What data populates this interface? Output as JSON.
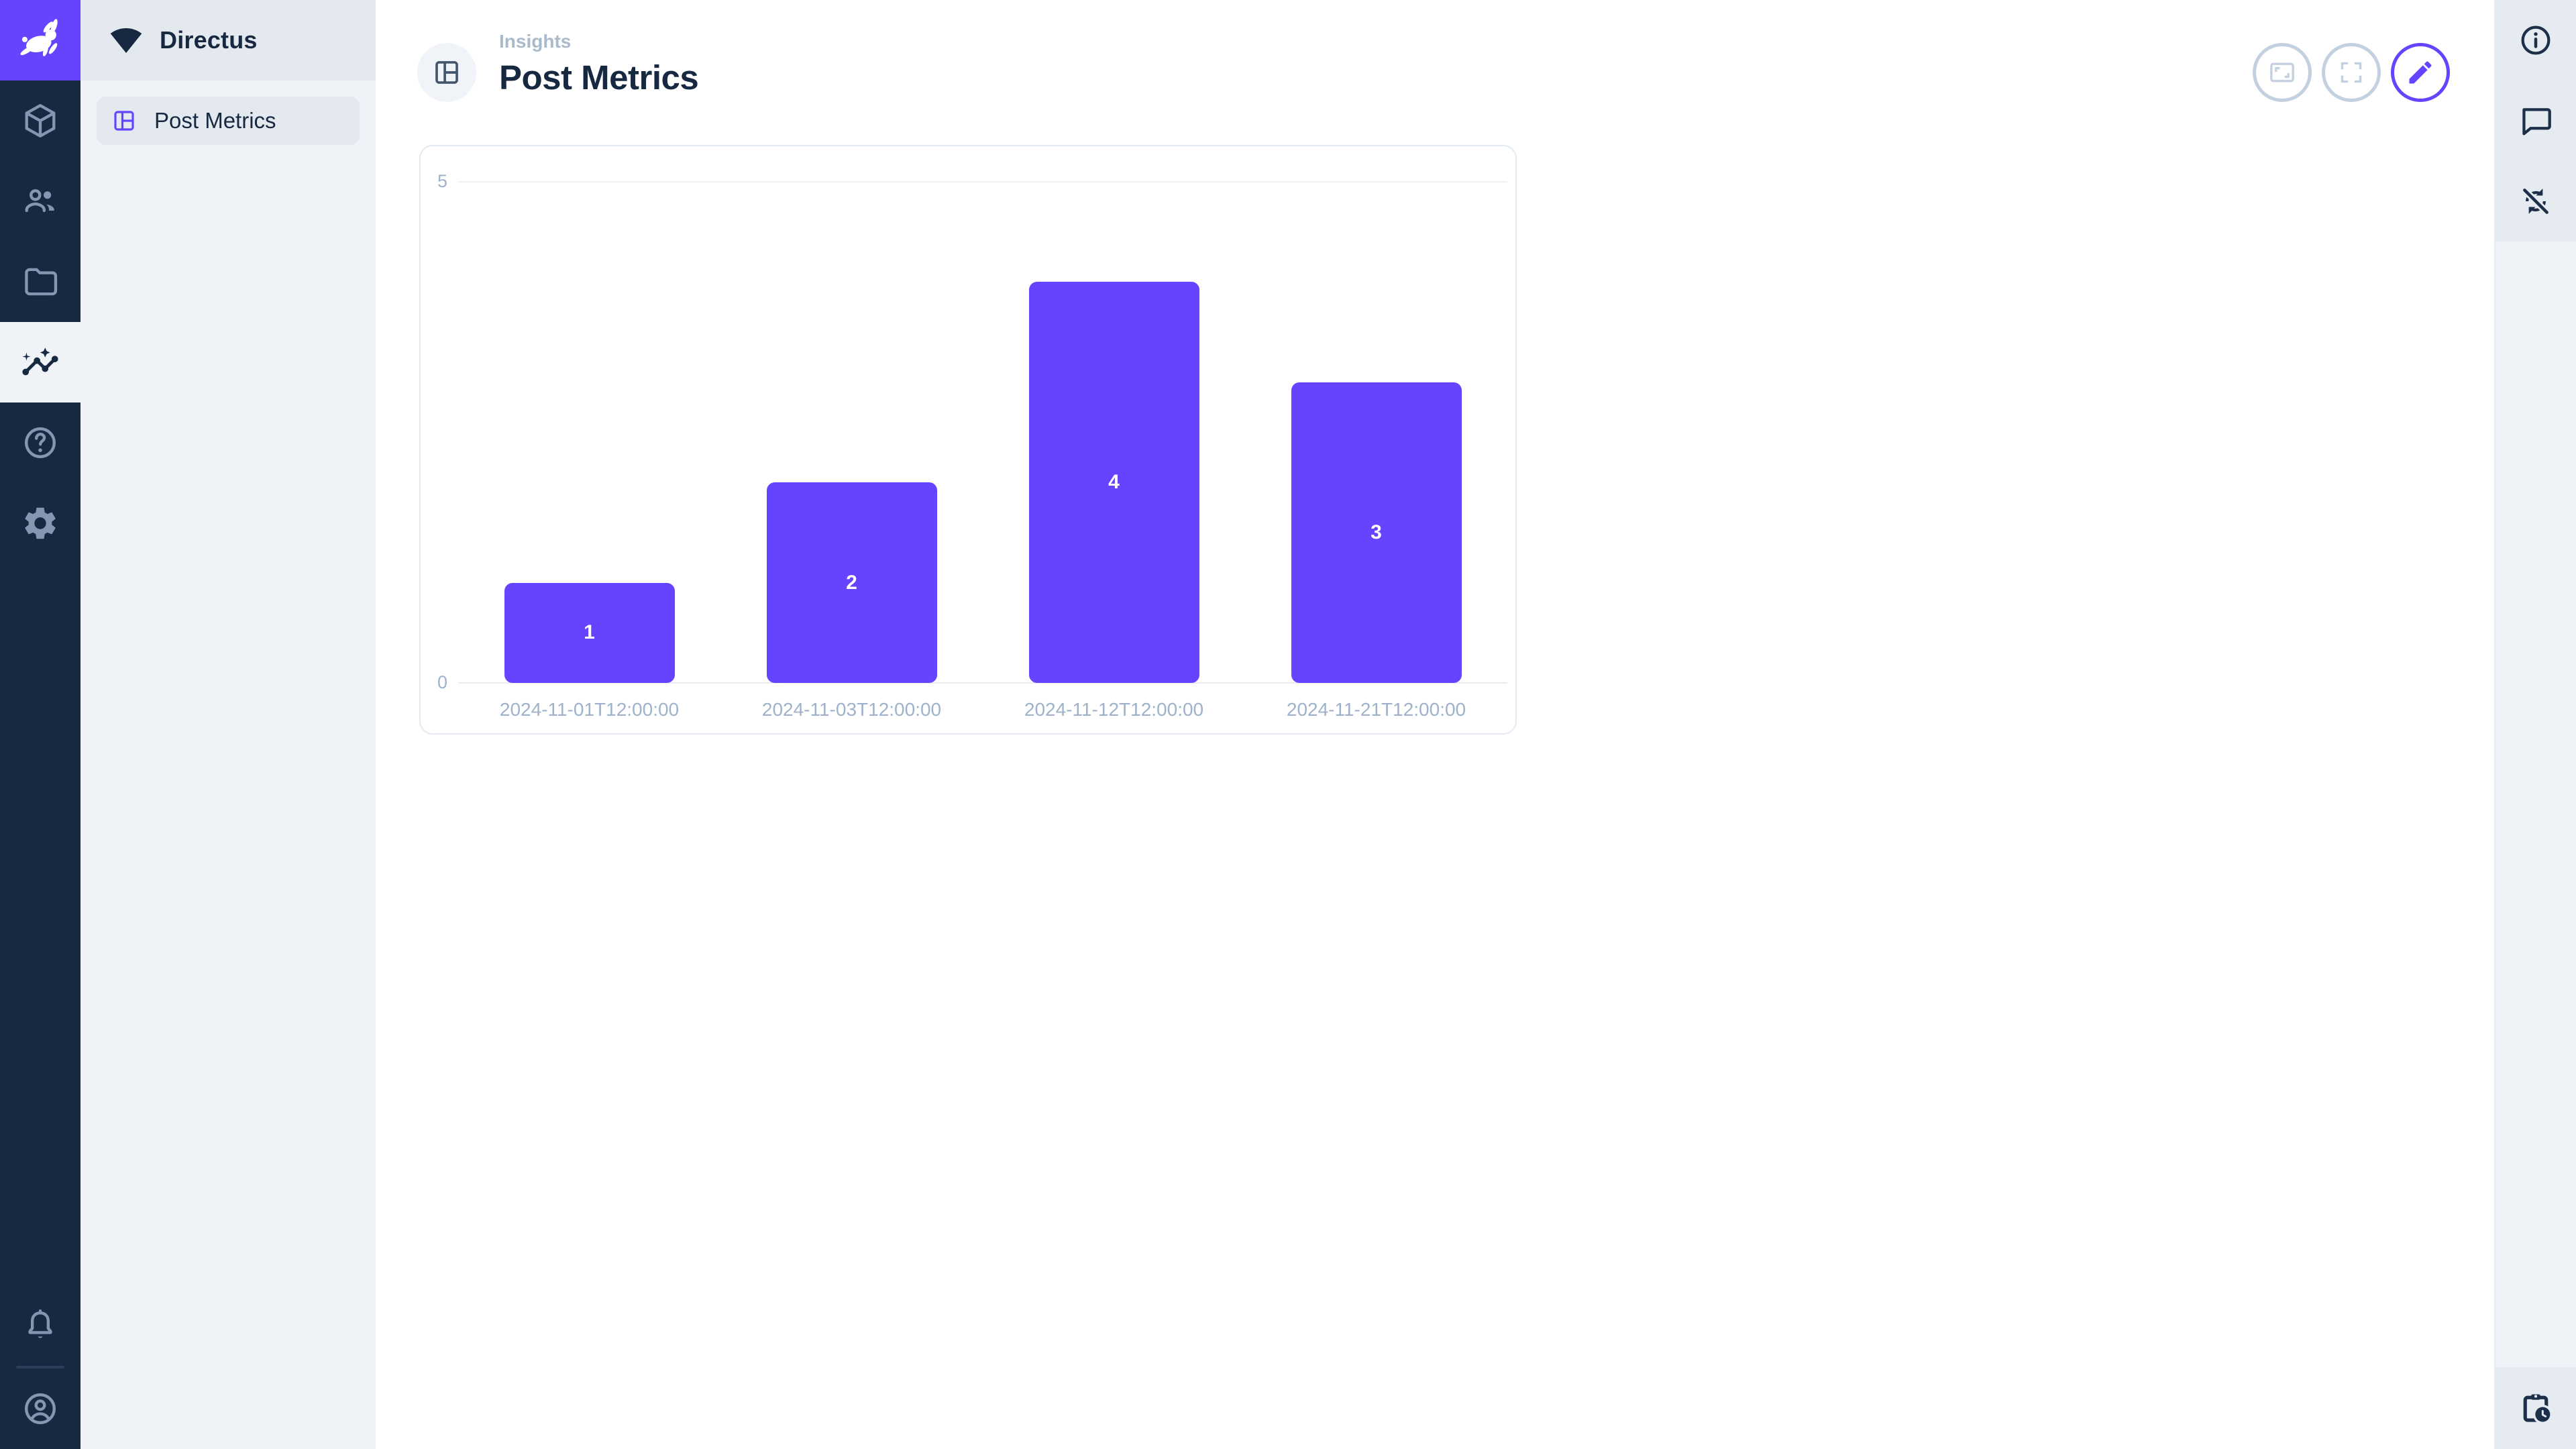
{
  "app": {
    "name": "Directus",
    "accent_color": "#6644FF",
    "module_bar_color": "#172940",
    "nav_background": "#EFF3F8"
  },
  "module_bar": {
    "logo_icon": "directus-rabbit-icon",
    "items": [
      {
        "icon": "box-icon",
        "active": false
      },
      {
        "icon": "people-icon",
        "active": false
      },
      {
        "icon": "folder-icon",
        "active": false
      },
      {
        "icon": "insights-icon",
        "active": true
      },
      {
        "icon": "help-icon",
        "active": false
      },
      {
        "icon": "settings-gear-icon",
        "active": false
      }
    ],
    "bottom_items": [
      {
        "icon": "bell-icon"
      },
      {
        "icon": "account-circle-icon"
      }
    ]
  },
  "nav_sidebar": {
    "project_name": "Directus",
    "project_icon": "signal-wedge-icon",
    "items": [
      {
        "icon": "dashboard-icon",
        "label": "Post Metrics",
        "active": true
      }
    ]
  },
  "header": {
    "breadcrumb": "Insights",
    "title": "Post Metrics",
    "title_icon": "dashboard-icon",
    "actions": [
      {
        "icon": "aspect-ratio-icon",
        "name": "zoom-to-fit",
        "disabled": true
      },
      {
        "icon": "fullscreen-icon",
        "name": "fullscreen",
        "disabled": true
      },
      {
        "icon": "pencil-icon",
        "name": "edit-panels",
        "disabled": false
      }
    ]
  },
  "right_sidebar": {
    "icons": [
      "info-icon",
      "comment-bubble-icon",
      "sync-disabled-icon",
      "pending-actions-icon"
    ]
  },
  "chart_data": {
    "type": "bar",
    "categories": [
      "2024-11-01T12:00:00",
      "2024-11-03T12:00:00",
      "2024-11-12T12:00:00",
      "2024-11-21T12:00:00"
    ],
    "values": [
      1,
      2,
      4,
      3
    ],
    "title": "",
    "xlabel": "",
    "ylabel": "",
    "ylim": [
      0,
      5
    ],
    "yticks": [
      5,
      0
    ],
    "bar_color": "#6644FF",
    "value_label_color": "#ffffff",
    "axis_label_color": "#9FB2CB",
    "grid": "horizontal-ticks-only",
    "legend": "none",
    "value_labels": true
  }
}
